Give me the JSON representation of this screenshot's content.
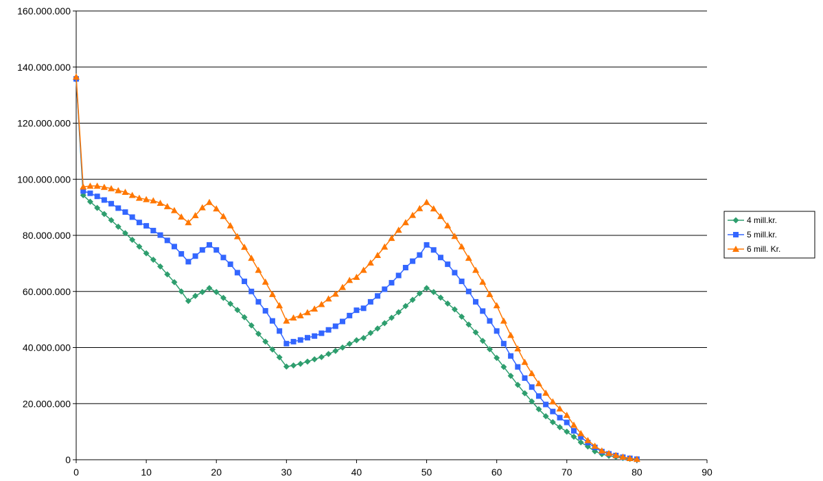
{
  "chart_data": {
    "type": "line",
    "title": "",
    "xlabel": "",
    "ylabel": "",
    "xlim": [
      0,
      90
    ],
    "ylim": [
      0,
      160000000
    ],
    "xticks": [
      0,
      10,
      20,
      30,
      40,
      50,
      60,
      70,
      80,
      90
    ],
    "xtick_labels": [
      "0",
      "10",
      "20",
      "30",
      "40",
      "50",
      "60",
      "70",
      "80",
      "90"
    ],
    "yticks": [
      0,
      20000000,
      40000000,
      60000000,
      80000000,
      100000000,
      120000000,
      140000000,
      160000000
    ],
    "ytick_labels": [
      "0",
      "20.000.000",
      "40.000.000",
      "60.000.000",
      "80.000.000",
      "100.000.000",
      "120.000.000",
      "140.000.000",
      "160.000.000"
    ],
    "grid": "horizontal",
    "legend_position": "right",
    "x": [
      0,
      1,
      2,
      3,
      4,
      5,
      6,
      7,
      8,
      9,
      10,
      11,
      12,
      13,
      14,
      15,
      16,
      17,
      18,
      19,
      20,
      21,
      22,
      23,
      24,
      25,
      26,
      27,
      28,
      29,
      30,
      31,
      32,
      33,
      34,
      35,
      36,
      37,
      38,
      39,
      40,
      41,
      42,
      43,
      44,
      45,
      46,
      47,
      48,
      49,
      50,
      51,
      52,
      53,
      54,
      55,
      56,
      57,
      58,
      59,
      60,
      61,
      62,
      63,
      64,
      65,
      66,
      67,
      68,
      69,
      70,
      71,
      72,
      73,
      74,
      75,
      76,
      77,
      78,
      79,
      80
    ],
    "series": [
      {
        "name": "4 mill.kr.",
        "color": "#2e9e6e",
        "marker": "diamond",
        "values": [
          135500000,
          94300000,
          92000000,
          89800000,
          87600000,
          85400000,
          83100000,
          80800000,
          78400000,
          76000000,
          73600000,
          71300000,
          68900000,
          66100000,
          63300000,
          60000000,
          56600000,
          58400000,
          59800000,
          61200000,
          59800000,
          57700000,
          55600000,
          53400000,
          50800000,
          47900000,
          44900000,
          42100000,
          39300000,
          36500000,
          33200000,
          33600000,
          34200000,
          35000000,
          35800000,
          36600000,
          37700000,
          38800000,
          40000000,
          41300000,
          42600000,
          43400000,
          45200000,
          46800000,
          48700000,
          50600000,
          52600000,
          54800000,
          57000000,
          59300000,
          61200000,
          59800000,
          57800000,
          55700000,
          53600000,
          51000000,
          48200000,
          45400000,
          42400000,
          39400000,
          36300000,
          33100000,
          29900000,
          26700000,
          23700000,
          20800000,
          18000000,
          15500000,
          13400000,
          11600000,
          10000000,
          8200000,
          6200000,
          4700000,
          3000000,
          2000000,
          1400000,
          1000000,
          600000,
          300000,
          100000
        ]
      },
      {
        "name": "5 mill.kr.",
        "color": "#3366ff",
        "marker": "square",
        "values": [
          135800000,
          95800000,
          95000000,
          93900000,
          92600000,
          91300000,
          89700000,
          88300000,
          86500000,
          84600000,
          83400000,
          81700000,
          80100000,
          78200000,
          76000000,
          73400000,
          70600000,
          72600000,
          74800000,
          76600000,
          74800000,
          72100000,
          69700000,
          66700000,
          63600000,
          60000000,
          56300000,
          53100000,
          49500000,
          45900000,
          41400000,
          42100000,
          42700000,
          43500000,
          44100000,
          45100000,
          46300000,
          47600000,
          49300000,
          51400000,
          53300000,
          54000000,
          56300000,
          58400000,
          60800000,
          63100000,
          65700000,
          68500000,
          70800000,
          73000000,
          76600000,
          74800000,
          72100000,
          69700000,
          66700000,
          63600000,
          60000000,
          56300000,
          53000000,
          49500000,
          45900000,
          41400000,
          37000000,
          33100000,
          29100000,
          25900000,
          22700000,
          19700000,
          17200000,
          15000000,
          13300000,
          10300000,
          8100000,
          6100000,
          4400000,
          2900000,
          2100000,
          1500000,
          900000,
          500000,
          200000
        ]
      },
      {
        "name": "6 mill. Kr.",
        "color": "#ff7700",
        "marker": "triangle",
        "values": [
          136500000,
          97300000,
          97600000,
          97600000,
          97200000,
          96700000,
          96000000,
          95400000,
          94300000,
          93300000,
          92800000,
          92400000,
          91500000,
          90300000,
          88900000,
          86600000,
          84600000,
          87100000,
          89900000,
          91800000,
          89500000,
          86800000,
          83500000,
          79600000,
          75800000,
          71900000,
          67600000,
          63400000,
          59000000,
          55000000,
          49500000,
          50600000,
          51400000,
          52500000,
          53800000,
          55400000,
          57400000,
          59100000,
          61500000,
          64000000,
          65100000,
          67600000,
          70200000,
          72900000,
          75900000,
          79000000,
          81900000,
          84600000,
          87200000,
          89600000,
          91800000,
          89500000,
          86800000,
          83500000,
          79700000,
          76000000,
          71900000,
          67600000,
          63400000,
          59000000,
          55000000,
          49500000,
          44400000,
          39600000,
          34800000,
          30800000,
          27200000,
          23800000,
          20700000,
          18200000,
          15900000,
          12400000,
          9400000,
          6900000,
          4900000,
          3200000,
          2300000,
          1600000,
          1000000,
          500000,
          200000
        ]
      }
    ]
  }
}
